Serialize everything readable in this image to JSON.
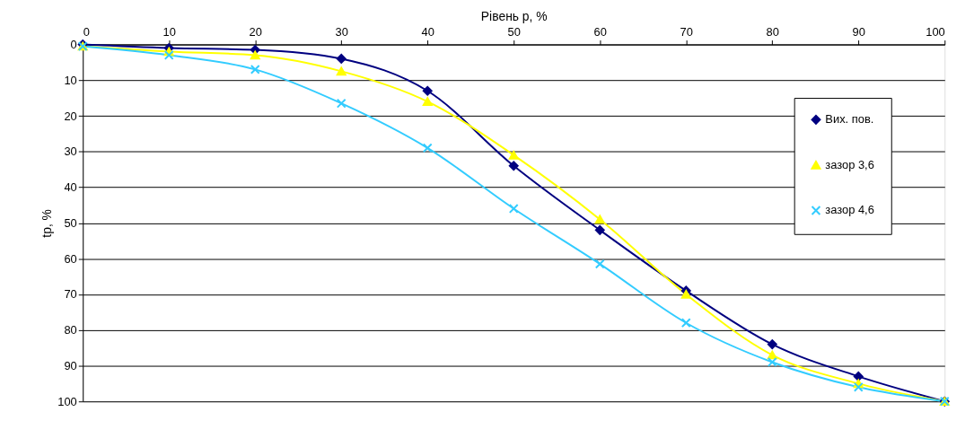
{
  "chart_data": {
    "type": "line",
    "xlabel": "Рівень p, %",
    "ylabel": "tp, %",
    "x": [
      0,
      10,
      20,
      30,
      40,
      50,
      60,
      70,
      80,
      90,
      100
    ],
    "series": [
      {
        "name": "Вих. пов.",
        "color": "#000080",
        "marker": "diamond",
        "values": [
          0,
          1,
          1.5,
          4,
          13,
          34,
          52,
          69,
          84,
          93,
          100
        ]
      },
      {
        "name": "зазор 3,6",
        "color": "#ffff00",
        "marker": "triangle",
        "values": [
          0.5,
          2,
          3,
          7.5,
          16,
          31,
          49,
          70,
          87,
          95,
          100
        ]
      },
      {
        "name": "зазор 4,6",
        "color": "#33ccff",
        "marker": "cross",
        "values": [
          0.5,
          3,
          7,
          16.5,
          29,
          46,
          61.5,
          78,
          89,
          96,
          100
        ]
      }
    ],
    "xlim": [
      0,
      100
    ],
    "xticks": [
      0,
      10,
      20,
      30,
      40,
      50,
      60,
      70,
      80,
      90,
      100
    ],
    "ylim": [
      100,
      0
    ],
    "yticks": [
      0,
      10,
      20,
      30,
      40,
      50,
      60,
      70,
      80,
      90,
      100
    ],
    "grid": "y",
    "legend": "right",
    "line_style": "solid"
  }
}
